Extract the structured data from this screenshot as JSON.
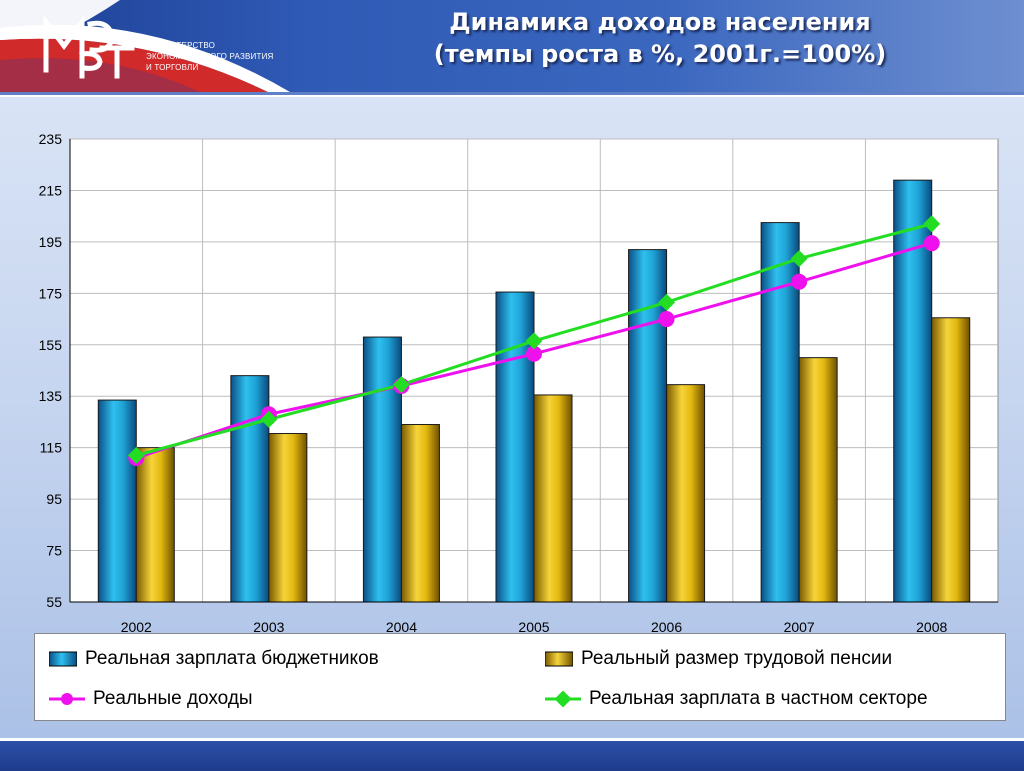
{
  "header": {
    "logo_letters": "МЭРТ",
    "logo_lines": [
      "МИНИСТЕРСТВО",
      "ЭКОНОМИЧЕСКОГО РАЗВИТИЯ",
      "И ТОРГОВЛИ"
    ],
    "title_line1": "Динамика доходов населения",
    "title_line2": "(темпы роста в %,  2001г.=100%)"
  },
  "colors": {
    "budget_bar": "#1fa3d6",
    "pension_bar": "#e2b810",
    "income_line": "#ee11ee",
    "private_line": "#22dd22",
    "header_blue": "#2f5ab5"
  },
  "chart_data": {
    "type": "bar",
    "categories": [
      "2002",
      "2003",
      "2004",
      "2005",
      "2006",
      "2007",
      "2008"
    ],
    "ylim": [
      55,
      235
    ],
    "yticks": [
      55,
      75,
      95,
      115,
      135,
      155,
      175,
      195,
      215,
      235
    ],
    "grid": true,
    "legend_position": "bottom",
    "series": [
      {
        "name": "Реальная зарплата бюджетников",
        "kind": "bar",
        "values": [
          133.5,
          143,
          158,
          175.5,
          192,
          202.5,
          219
        ]
      },
      {
        "name": "Реальный размер трудовой пенсии",
        "kind": "bar",
        "values": [
          115,
          120.5,
          124,
          135.5,
          139.5,
          150,
          165.5
        ]
      },
      {
        "name": "Реальные доходы",
        "kind": "line",
        "values": [
          111,
          128,
          139,
          151.5,
          165,
          179.5,
          194.5
        ]
      },
      {
        "name": "Реальная зарплата в частном секторе",
        "kind": "line",
        "values": [
          112,
          126,
          139.5,
          156.5,
          171.5,
          188.5,
          202
        ]
      }
    ]
  }
}
